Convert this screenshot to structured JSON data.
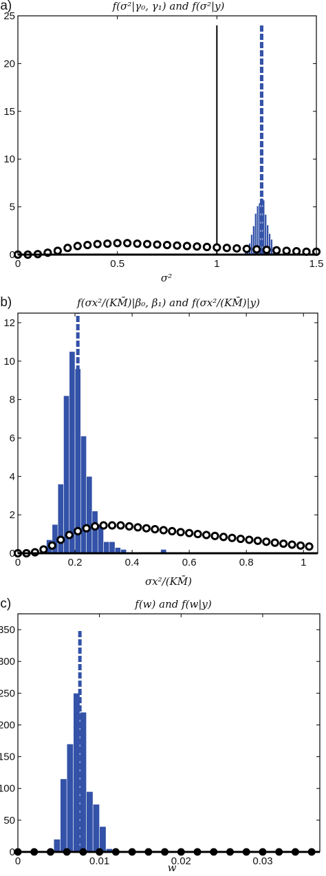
{
  "chart_data": [
    {
      "type": "bar",
      "panel_label": "(a)",
      "title": "f(σ²|γ₀, γ₁) and f(σ²|y)",
      "xlabel": "σ²",
      "ylabel": "",
      "xlim": [
        0,
        1.5
      ],
      "ylim": [
        0,
        25
      ],
      "x_ticks": [
        "0",
        "0.5",
        "1",
        "1.5"
      ],
      "x_tick_values": [
        0,
        0.5,
        1,
        1.5
      ],
      "y_ticks": [
        "0",
        "5",
        "10",
        "15",
        "20",
        "25"
      ],
      "y_tick_values": [
        0,
        5,
        10,
        15,
        20,
        25
      ],
      "colors": {
        "bars": "#3352a8",
        "dashed": "#3352a8",
        "line": "#000000",
        "dots": "#000000"
      },
      "histogram": {
        "bin_width": 0.01,
        "bin_starts": [
          1.14,
          1.15,
          1.16,
          1.17,
          1.18,
          1.19,
          1.2,
          1.21,
          1.22,
          1.23,
          1.24,
          1.25,
          1.26,
          1.27,
          1.28,
          1.29,
          1.3
        ],
        "values": [
          0.2,
          0.5,
          1.2,
          2.1,
          3.0,
          4.3,
          5.1,
          5.4,
          5.9,
          5.7,
          4.2,
          3.1,
          2.2,
          1.6,
          0.8,
          0.3,
          0.1
        ]
      },
      "posterior_mean_dashed": {
        "x": 1.225,
        "y_top": 24
      },
      "true_value_line": {
        "x": 1.0,
        "y_top": 24
      },
      "prior_dotted": {
        "x": [
          0.0,
          0.05,
          0.1,
          0.15,
          0.2,
          0.25,
          0.3,
          0.35,
          0.4,
          0.45,
          0.5,
          0.55,
          0.6,
          0.65,
          0.7,
          0.75,
          0.8,
          0.85,
          0.9,
          0.95,
          1.0,
          1.05,
          1.1,
          1.15,
          1.2,
          1.25,
          1.3,
          1.35,
          1.4,
          1.45,
          1.5
        ],
        "y": [
          0.0,
          0.0,
          0.05,
          0.2,
          0.4,
          0.7,
          0.9,
          1.0,
          1.1,
          1.15,
          1.2,
          1.2,
          1.15,
          1.1,
          1.05,
          1.0,
          0.95,
          0.9,
          0.85,
          0.8,
          0.75,
          0.7,
          0.65,
          0.6,
          0.55,
          0.5,
          0.45,
          0.4,
          0.35,
          0.3,
          0.3
        ],
        "style": "ring"
      }
    },
    {
      "type": "bar",
      "panel_label": "(b)",
      "title": "f(σx²/(KM̄)|β₀, β₁) and f(σx²/(KM̄)|y)",
      "xlabel": "σx²/(KM̄)",
      "ylabel": "",
      "xlim": [
        0,
        1.05
      ],
      "ylim": [
        0,
        12.5
      ],
      "x_ticks": [
        "0",
        "0.2",
        "0.4",
        "0.6",
        "0.8",
        "1"
      ],
      "x_tick_values": [
        0,
        0.2,
        0.4,
        0.6,
        0.8,
        1
      ],
      "y_ticks": [
        "0",
        "2",
        "4",
        "6",
        "8",
        "10",
        "12"
      ],
      "y_tick_values": [
        0,
        2,
        4,
        6,
        8,
        10,
        12
      ],
      "colors": {
        "bars": "#3352a8",
        "dashed": "#3352a8",
        "dots": "#000000"
      },
      "histogram": {
        "bin_width": 0.02,
        "bin_starts": [
          0.08,
          0.1,
          0.12,
          0.14,
          0.16,
          0.18,
          0.2,
          0.22,
          0.24,
          0.26,
          0.28,
          0.3,
          0.32,
          0.34,
          0.36,
          0.5
        ],
        "values": [
          0.2,
          0.7,
          1.5,
          3.6,
          8.2,
          10.5,
          9.6,
          6.1,
          4.0,
          2.2,
          1.5,
          0.6,
          0.6,
          0.3,
          0.2,
          0.2
        ]
      },
      "posterior_mean_dashed": {
        "x": 0.21,
        "y_top": 12.5
      },
      "prior_dotted": {
        "x": [
          0.0,
          0.03,
          0.06,
          0.09,
          0.12,
          0.15,
          0.18,
          0.21,
          0.24,
          0.27,
          0.3,
          0.33,
          0.36,
          0.39,
          0.42,
          0.45,
          0.48,
          0.51,
          0.54,
          0.57,
          0.6,
          0.63,
          0.66,
          0.69,
          0.72,
          0.75,
          0.78,
          0.81,
          0.84,
          0.87,
          0.9,
          0.93,
          0.96,
          0.99,
          1.02
        ],
        "y": [
          0.0,
          0.0,
          0.05,
          0.2,
          0.4,
          0.7,
          0.95,
          1.15,
          1.3,
          1.4,
          1.45,
          1.45,
          1.45,
          1.4,
          1.35,
          1.3,
          1.25,
          1.2,
          1.15,
          1.1,
          1.05,
          1.0,
          0.95,
          0.9,
          0.85,
          0.8,
          0.75,
          0.7,
          0.65,
          0.6,
          0.55,
          0.5,
          0.45,
          0.4,
          0.35
        ],
        "style": "ring"
      }
    },
    {
      "type": "bar",
      "panel_label": "(c)",
      "title": "f(w) and f(w|y)",
      "xlabel": "w",
      "ylabel": "",
      "xlim": [
        0,
        0.037
      ],
      "ylim": [
        0,
        375
      ],
      "x_ticks": [
        "0",
        "0.01",
        "0.02",
        "0.03"
      ],
      "x_tick_values": [
        0,
        0.01,
        0.02,
        0.03
      ],
      "y_ticks": [
        "0",
        "50",
        "100",
        "150",
        "200",
        "250",
        "300",
        "350"
      ],
      "y_tick_values": [
        0,
        50,
        100,
        150,
        200,
        250,
        300,
        350
      ],
      "colors": {
        "bars": "#3352a8",
        "dashed": "#3352a8",
        "dots": "#000000"
      },
      "histogram": {
        "bin_width": 0.0008,
        "bin_starts": [
          0.0044,
          0.0052,
          0.006,
          0.0068,
          0.0076,
          0.0084,
          0.0092,
          0.01,
          0.0108,
          0.0116,
          0.0124,
          0.0132
        ],
        "values": [
          20,
          115,
          170,
          250,
          220,
          95,
          75,
          40,
          5,
          3,
          2,
          1
        ]
      },
      "posterior_mean_dashed": {
        "x": 0.0076,
        "y_top": 350
      },
      "prior_dotted": {
        "x": [
          0.0,
          0.002,
          0.004,
          0.006,
          0.008,
          0.01,
          0.012,
          0.014,
          0.016,
          0.018,
          0.02,
          0.022,
          0.024,
          0.026,
          0.028,
          0.03,
          0.032,
          0.034,
          0.036
        ],
        "y": [
          0,
          0,
          0,
          0,
          0,
          0,
          0,
          0,
          0,
          0,
          0,
          0,
          0,
          0,
          0,
          0,
          0,
          0,
          0
        ],
        "style": "filled"
      }
    }
  ]
}
